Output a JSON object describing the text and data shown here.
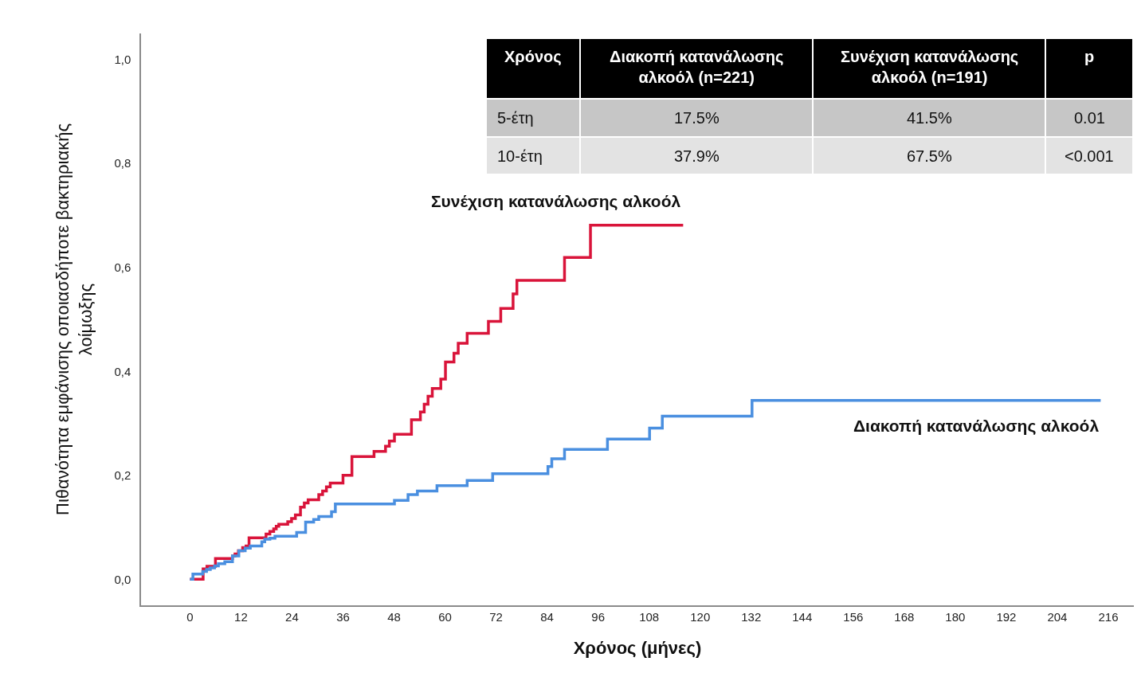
{
  "chart_data": {
    "type": "step",
    "xlabel": "Χρόνος (μήνες)",
    "ylabel": "Πιθανότητα εμφάνισης οποιασδήποτε βακτηριακής λοίμωξης",
    "series": [
      {
        "name": "Συνέχιση κατανάλωσης αλκοόλ",
        "color": "#d9143a",
        "x": [
          0,
          3.1,
          4.0,
          6.0,
          10.0,
          10.6,
          11.4,
          12.4,
          13.2,
          13.9,
          17.9,
          18.8,
          19.7,
          20.3,
          20.9,
          23.0,
          23.9,
          24.8,
          26.0,
          26.9,
          27.8,
          30.3,
          31.2,
          32.1,
          33.0,
          36.0,
          38.1,
          43.3,
          46.0,
          46.9,
          48.1,
          52.1,
          54.2,
          55.1,
          56.0,
          57.0,
          59.0,
          60.1,
          62.1,
          63.1,
          65.2,
          70.2,
          73.1,
          76.0,
          76.9,
          88.1,
          94.2,
          116.0
        ],
        "values": [
          0,
          0.02,
          0.025,
          0.04,
          0.045,
          0.049,
          0.055,
          0.061,
          0.064,
          0.08,
          0.087,
          0.092,
          0.097,
          0.102,
          0.106,
          0.111,
          0.117,
          0.124,
          0.139,
          0.147,
          0.153,
          0.163,
          0.17,
          0.178,
          0.185,
          0.2,
          0.236,
          0.246,
          0.256,
          0.266,
          0.279,
          0.307,
          0.322,
          0.337,
          0.352,
          0.367,
          0.385,
          0.418,
          0.435,
          0.454,
          0.473,
          0.496,
          0.521,
          0.549,
          0.575,
          0.619,
          0.681,
          0.681
        ]
      },
      {
        "name": "Διακοπή κατανάλωσης αλκοόλ",
        "color": "#4a8fe0",
        "x": [
          0,
          0.7,
          3.0,
          3.9,
          4.8,
          5.8,
          6.7,
          8.2,
          10.0,
          11.5,
          13.0,
          14.2,
          16.9,
          17.6,
          18.8,
          20.0,
          25.1,
          27.2,
          29.1,
          30.3,
          33.3,
          34.2,
          48.1,
          51.3,
          53.5,
          58.1,
          65.2,
          71.2,
          84.2,
          85.1,
          88.1,
          98.2,
          108.1,
          111.1,
          132.2,
          214.2
        ],
        "values": [
          0,
          0.01,
          0.015,
          0.019,
          0.022,
          0.026,
          0.03,
          0.034,
          0.045,
          0.055,
          0.06,
          0.064,
          0.072,
          0.077,
          0.079,
          0.083,
          0.09,
          0.11,
          0.115,
          0.121,
          0.13,
          0.145,
          0.152,
          0.163,
          0.17,
          0.18,
          0.19,
          0.203,
          0.217,
          0.232,
          0.25,
          0.27,
          0.291,
          0.314,
          0.344,
          0.344
        ]
      }
    ],
    "xlim": [
      -11.5,
      222
    ],
    "xticks": [
      0,
      12,
      24,
      36,
      48,
      60,
      72,
      84,
      96,
      108,
      120,
      132,
      144,
      156,
      168,
      180,
      192,
      204,
      216
    ],
    "ylim": [
      -0.05,
      1.05
    ],
    "yticks": [
      {
        "value": 0,
        "label": "0,0"
      },
      {
        "value": 0.2,
        "label": "0,2"
      },
      {
        "value": 0.4,
        "label": "0,4"
      },
      {
        "value": 0.6,
        "label": "0,6"
      },
      {
        "value": 0.8,
        "label": "0,8"
      },
      {
        "value": 1.0,
        "label": "1,0"
      }
    ],
    "grid": false,
    "legend": false,
    "marker": "none",
    "line_style": "solid",
    "annotations": [
      "Χρόνος",
      "Διακοπή κατανάλωσης αλκοόλ (n=221)",
      "Συνέχιση κατανάλωσης αλκοόλ (n=191)",
      "p",
      "5-έτη",
      "17.5%",
      "41.5%",
      "0.01",
      "10-έτη",
      "37.9%",
      "67.5%",
      "<0.001"
    ]
  }
}
